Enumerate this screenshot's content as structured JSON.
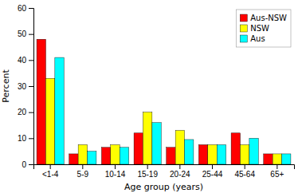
{
  "chart_data": {
    "type": "bar",
    "categories": [
      "<1-4",
      "5-9",
      "10-14",
      "15-19",
      "20-24",
      "25-44",
      "45-64",
      "65+"
    ],
    "series": [
      {
        "name": "Aus-NSW",
        "color": "#FF0000",
        "values": [
          48,
          4,
          6.5,
          12,
          6.5,
          7.5,
          12,
          4
        ]
      },
      {
        "name": "NSW",
        "color": "#FFFF00",
        "values": [
          33,
          7.5,
          7.5,
          20,
          13,
          7.5,
          7.5,
          4
        ]
      },
      {
        "name": "Aus",
        "color": "#00FFFF",
        "values": [
          41,
          5,
          6.5,
          16,
          9.5,
          7.5,
          10,
          4
        ]
      }
    ],
    "xlabel": "Age group (years)",
    "ylabel": "Percent",
    "ylim": [
      0,
      60
    ],
    "yticks": [
      0,
      10,
      20,
      30,
      40,
      50,
      60
    ],
    "legend": "upper right"
  }
}
